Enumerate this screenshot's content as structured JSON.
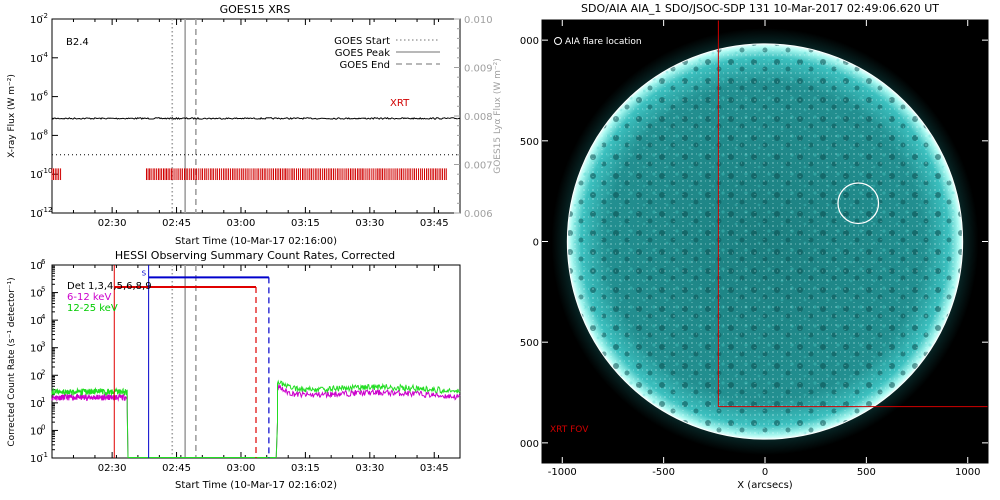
{
  "chart_data": [
    {
      "type": "line",
      "title": "GOES15 XRS",
      "xlabel": "Start Time (10-Mar-17 02:16:00)",
      "ylabel": "X-ray Flux (W m⁻²)",
      "y2label": "GOES15 Lyα Flux (W m⁻²)",
      "xlim_minutes_after_02_16": [
        0,
        95
      ],
      "x_tick_labels": [
        "02:30",
        "02:45",
        "03:00",
        "03:15",
        "03:30",
        "03:45"
      ],
      "x_tick_minutes": [
        14,
        29,
        44,
        59,
        74,
        89
      ],
      "y_log_exponents": [
        -12,
        -10,
        -8,
        -6,
        -4,
        -2
      ],
      "y_tick_labels": [
        "10",
        "10",
        "10",
        "10",
        "10",
        "10"
      ],
      "y_tick_exponent_labels": [
        "-12",
        "-10",
        "-8",
        "-6",
        "-4",
        "-2"
      ],
      "y2lim": [
        0.006,
        0.01
      ],
      "y2_tick_labels": [
        "0.006",
        "0.007",
        "0.008",
        "0.009",
        "0.010"
      ],
      "annotation": "B2.4",
      "xrt_label": "XRT",
      "xrt_color": "#d00000",
      "series": [
        {
          "name": "",
          "role": "lya_flux",
          "y2_value": 0.00795,
          "color": "#000000"
        },
        {
          "name": "",
          "role": "xray_reference",
          "log10_value": -9.0,
          "color": "#000000",
          "style": "dotted"
        }
      ],
      "events": [
        {
          "name": "GOES Start",
          "minute": 28,
          "style": "dotted",
          "color": "#a0a0a0"
        },
        {
          "name": "GOES Peak",
          "minute": 31,
          "style": "solid",
          "color": "#a0a0a0"
        },
        {
          "name": "GOES End",
          "minute": 33.5,
          "style": "dashed",
          "color": "#a0a0a0"
        }
      ],
      "xrt_coverage_minutes": [
        [
          0,
          2
        ],
        [
          22,
          92
        ]
      ]
    },
    {
      "type": "line",
      "title": "HESSI Observing Summary Count Rates, Corrected",
      "xlabel": "Start Time (10-Mar-17 02:16:02)",
      "ylabel": "Corrected Count Rate (s⁻¹ detector⁻¹)",
      "xlim_minutes_after_02_16": [
        0,
        95
      ],
      "x_tick_labels": [
        "02:30",
        "02:45",
        "03:00",
        "03:15",
        "03:30",
        "03:45"
      ],
      "x_tick_minutes": [
        14,
        29,
        44,
        59,
        74,
        89
      ],
      "y_log_exponents": [
        -1,
        0,
        1,
        2,
        3,
        4,
        5,
        6
      ],
      "y_tick_labels": [
        "10",
        "10",
        "10",
        "10",
        "10",
        "10",
        "10",
        "10"
      ],
      "y_tick_exponent_labels": [
        "-1",
        "0",
        "1",
        "2",
        "3",
        "4",
        "5",
        "6"
      ],
      "legend": [
        {
          "label": "Det 1,3,4,5,6,8,9",
          "color": "#000000"
        },
        {
          "label": "6-12 keV",
          "color": "#cc00cc"
        },
        {
          "label": "12-25 keV",
          "color": "#00cc00"
        }
      ],
      "series": [
        {
          "name": "6-12 keV",
          "color": "#cc00cc",
          "segments": [
            {
              "x": [
                0,
                17.5
              ],
              "log10_level": 1.2
            },
            {
              "x": [
                52.5,
                95
              ],
              "log10_level": 1.25,
              "recovery_peak": 1.7
            }
          ]
        },
        {
          "name": "12-25 keV",
          "color": "#22dd22",
          "segments": [
            {
              "x": [
                0,
                17.5
              ],
              "log10_level": 1.4
            },
            {
              "x": [
                52.5,
                95
              ],
              "log10_level": 1.45,
              "recovery_peak": 1.85
            }
          ]
        }
      ],
      "markers": [
        {
          "color": "#e00000",
          "x_start": 14.5,
          "x_end": 47.5,
          "log10_level": 5.2
        },
        {
          "color": "#0000cc",
          "x_start": 22.5,
          "x_end": 50.5,
          "log10_level": 5.55
        }
      ],
      "marker_label": "S",
      "events": [
        {
          "name": "GOES Start",
          "minute": 28,
          "style": "dotted",
          "color": "#a0a0a0"
        },
        {
          "name": "GOES Peak",
          "minute": 31,
          "style": "solid",
          "color": "#a0a0a0"
        },
        {
          "name": "GOES End",
          "minute": 33.5,
          "style": "dashed",
          "color": "#a0a0a0"
        }
      ]
    },
    {
      "type": "heatmap",
      "title": "SDO/AIA AIA_1 SDO/JSOC-SDP 131 10-Mar-2017 02:49:06.620 UT",
      "xlabel": "X (arcsecs)",
      "xlim": [
        -1100,
        1100
      ],
      "ylim": [
        -1100,
        1100
      ],
      "x_tick_labels": [
        "-1000",
        "-500",
        "0",
        "500",
        "1000"
      ],
      "x_ticks": [
        -1000,
        -500,
        0,
        500,
        1000
      ],
      "y_tick_labels": [
        "-1000",
        "-500",
        "0",
        "500",
        "1000"
      ],
      "y_ticks": [
        -1000,
        -500,
        0,
        500,
        1000
      ],
      "solar_radius_arcsec": 975,
      "flare_location_label": "AIA flare location",
      "flare_location": {
        "x": 460,
        "y": 190,
        "radius": 100
      },
      "xrt_fov_label": "XRT FOV",
      "xrt_fov": {
        "x_min": -230,
        "x_max": 1100,
        "y_min": -820,
        "y_max": 1100
      },
      "colors": {
        "limb": "#b8fff8",
        "disk": "#1f8d8d",
        "fov": "#d00000",
        "flare_circle": "#ffffff"
      }
    }
  ]
}
